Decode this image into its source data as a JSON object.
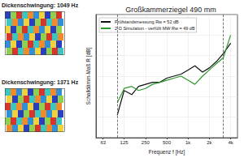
{
  "chart_data": {
    "type": "line",
    "title": "Großkammerziegel 490 mm",
    "x_label": "Frequenz f [Hz]",
    "y_label": "Schalldämm-Maß R [dB]",
    "annotations": [
      "Dickenschwingung: 1049 Hz",
      "Dickenschwingung: 1371 Hz"
    ],
    "x": [
      100,
      125,
      160,
      200,
      250,
      315,
      400,
      500,
      630,
      800,
      1000,
      1250,
      1600,
      2000,
      2500,
      3150,
      4000
    ],
    "series": [
      {
        "name": "Prüfstandsmessung Rw = 52 dB",
        "color": "#111111",
        "values": [
          31,
          43,
          41,
          45,
          46,
          47,
          47,
          49,
          50,
          51,
          53,
          55,
          52,
          54,
          57,
          61,
          66
        ]
      },
      {
        "name": "2-D Simulation - verfüllt MW Rw = 49 dB",
        "color": "#2e9a2e",
        "values": [
          37,
          44,
          45,
          43,
          44,
          46,
          47,
          48,
          49,
          50,
          48,
          46,
          50,
          53,
          56,
          59,
          70
        ]
      }
    ],
    "vlines": [
      100,
      3150
    ],
    "log": "x",
    "xlim": [
      50,
      5000
    ],
    "xticks": [
      63,
      125,
      250,
      500,
      {
        "value": 1000,
        "label": "1k"
      },
      {
        "value": 2000,
        "label": "2k"
      },
      {
        "value": 4000,
        "label": "4k"
      }
    ],
    "ylim": [
      20,
      80
    ],
    "yticks": [
      20,
      30,
      40,
      50,
      60,
      70,
      80
    ],
    "grid": true,
    "legend": "upper left",
    "tick_labels": "x"
  }
}
